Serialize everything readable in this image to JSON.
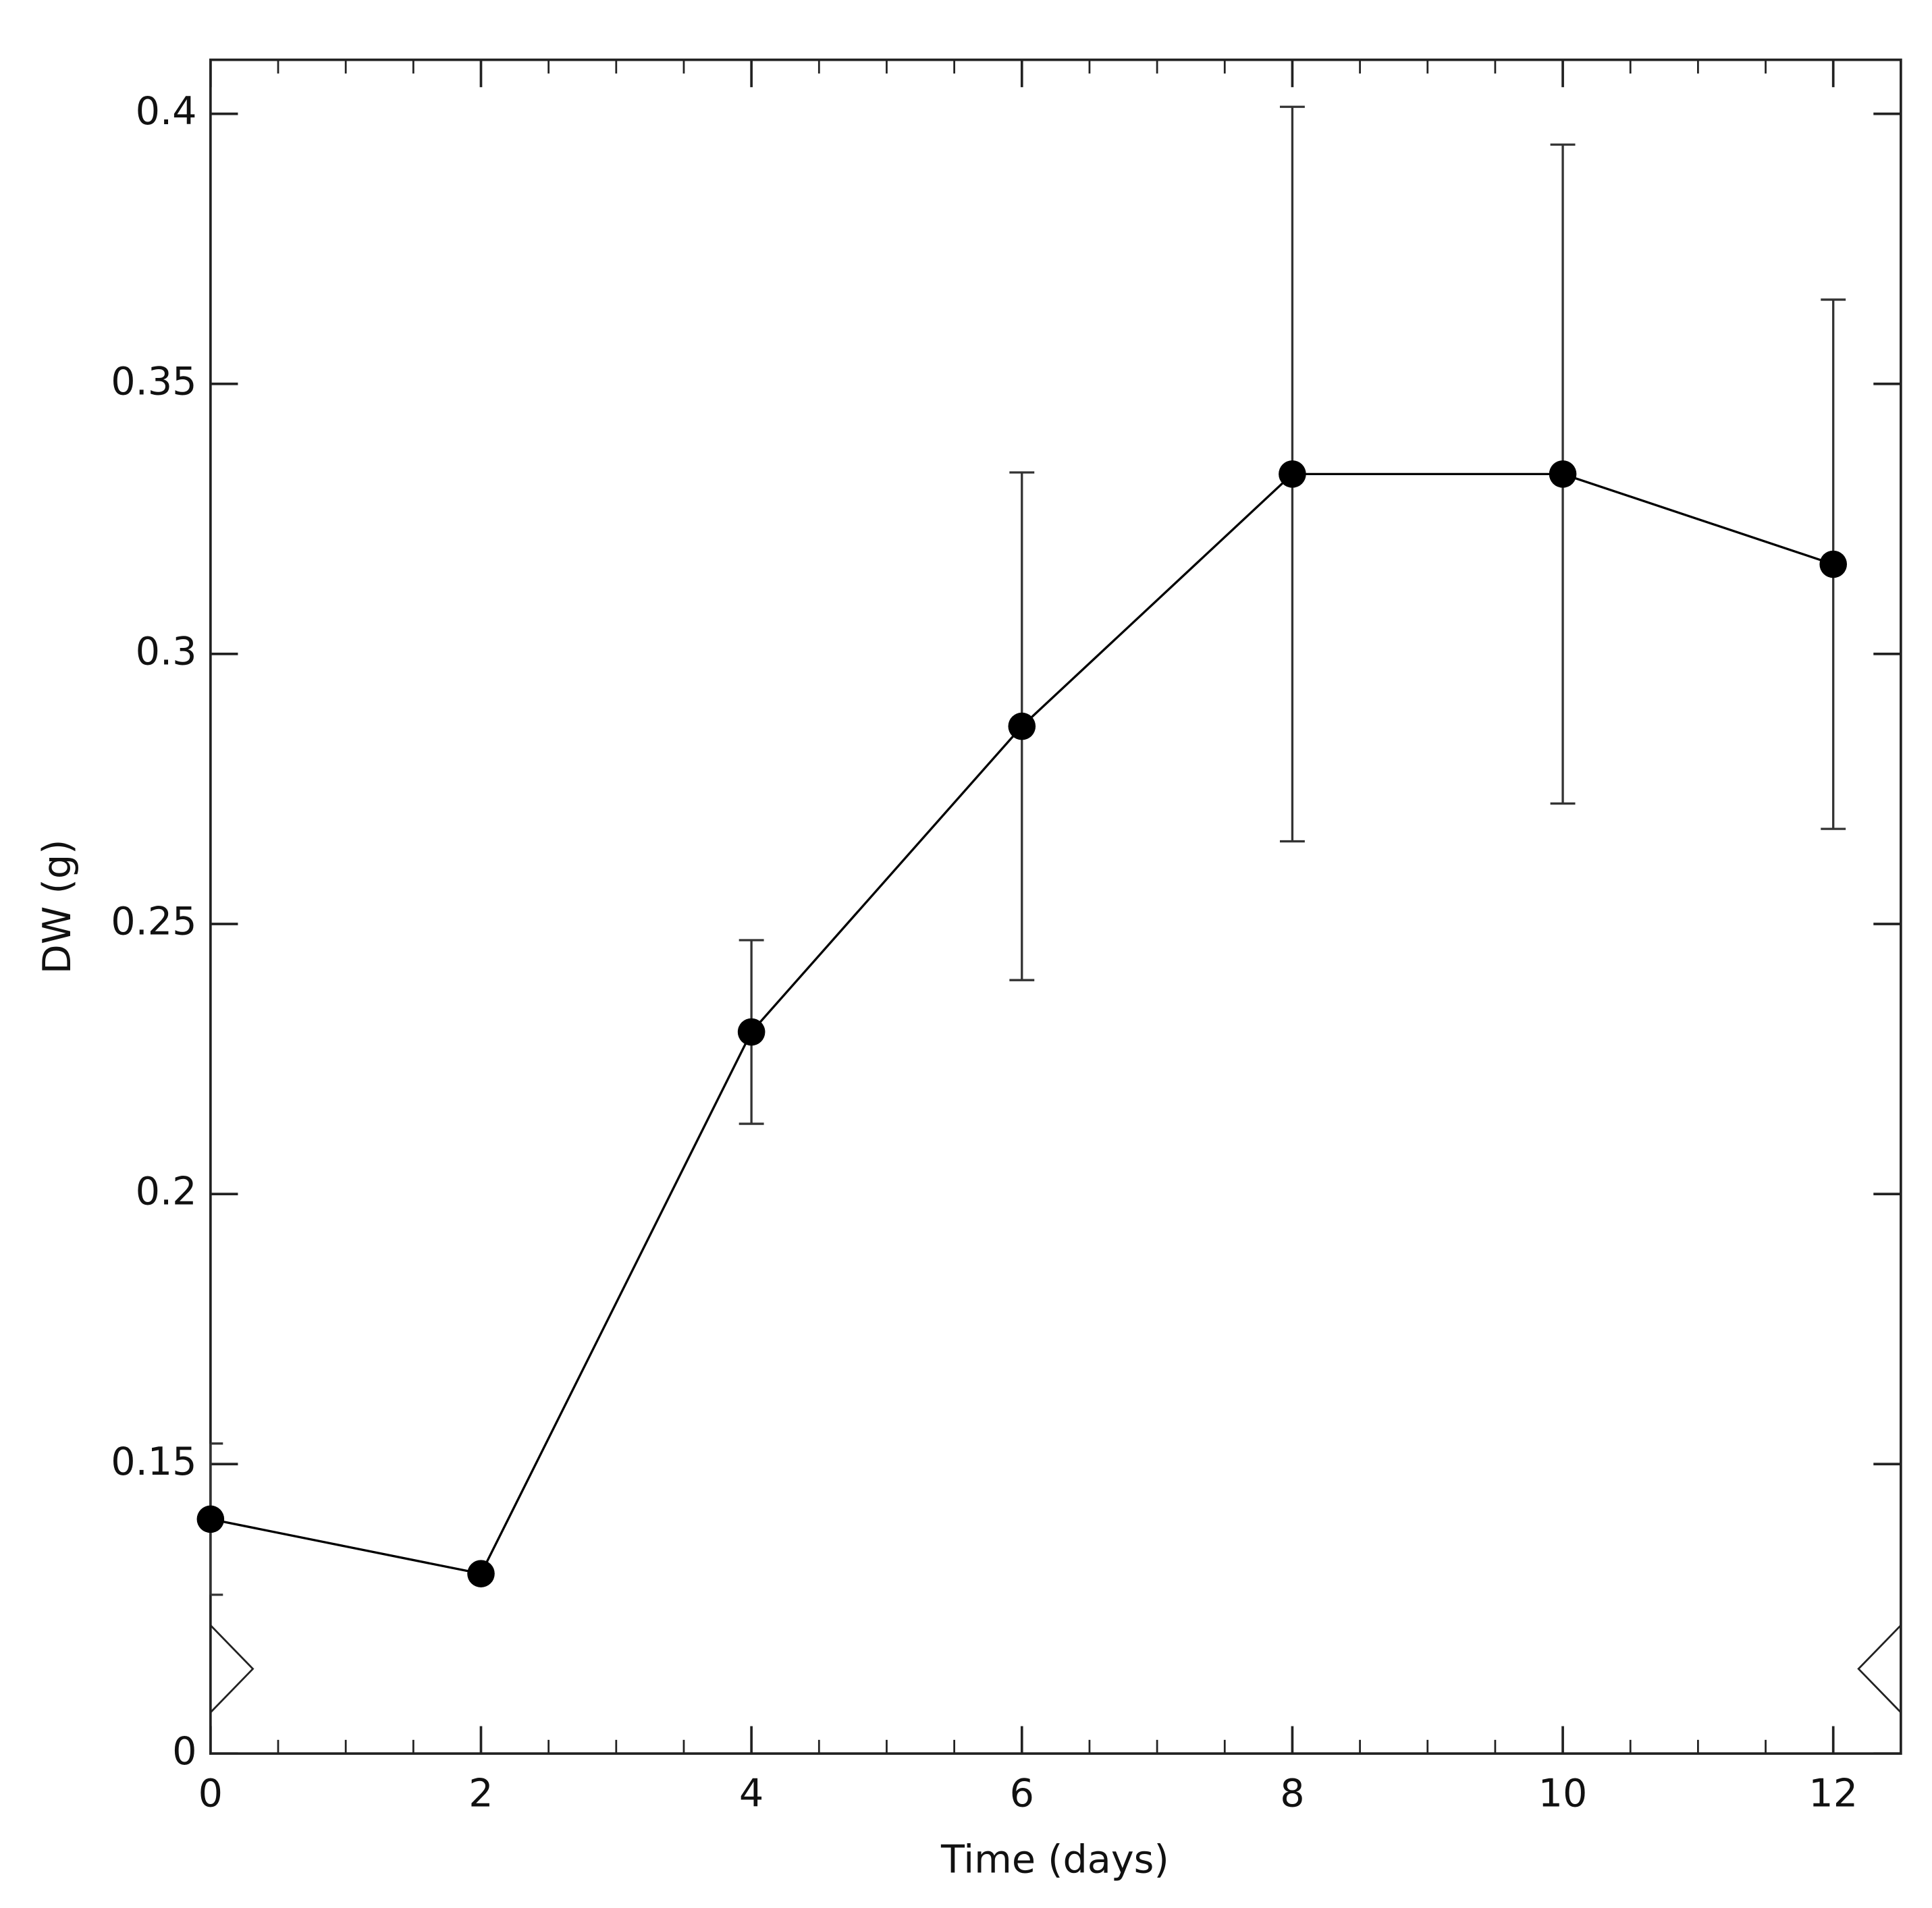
{
  "chart_data": {
    "type": "line",
    "x_label": "Time (days)",
    "y_label": "DW (g)",
    "x": [
      0,
      2,
      4,
      6,
      8,
      10,
      12
    ],
    "values": [
      0.1398,
      0.1297,
      0.23,
      0.2866,
      0.3333,
      0.3333,
      0.3166
    ],
    "errors": [
      0.014,
      0,
      0.017,
      0.047,
      0.068,
      0.061,
      0.049
    ],
    "color": "#000000",
    "xlim": [
      0,
      12.5
    ],
    "xticks": [
      0,
      2,
      4,
      6,
      8,
      10,
      12
    ],
    "x_minor_step": 0.5,
    "ylim": [
      0,
      0.41
    ],
    "yticks": [
      0,
      0.15,
      0.2,
      0.25,
      0.3,
      0.35,
      0.4
    ],
    "axis_break": [
      0,
      0.0964
    ]
  }
}
